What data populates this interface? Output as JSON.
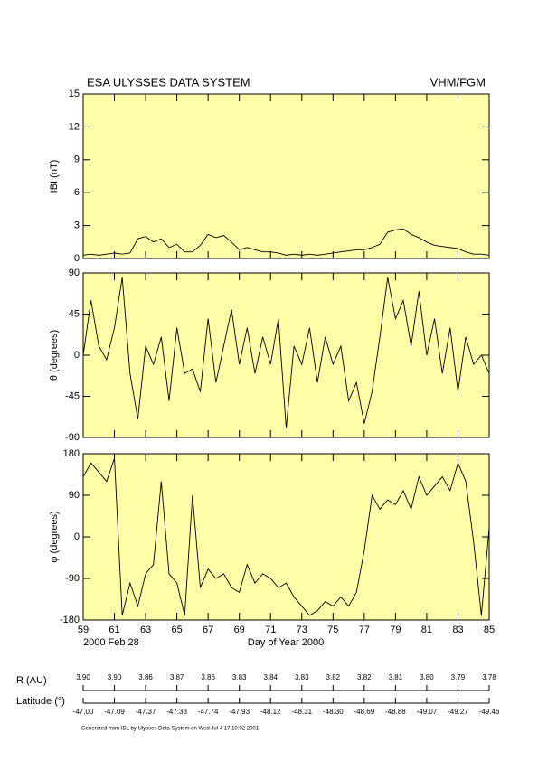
{
  "header": {
    "title": "ESA ULYSSES DATA SYSTEM",
    "instrument": "VHM/FGM"
  },
  "x_label": "Day of Year 2000",
  "start_date": "2000 Feb 28",
  "footer": "Generated from IDL by Ulysses Data System on Wed Jul 4 17:10:02 2001",
  "chart_data": [
    {
      "type": "line",
      "y_label": "IBI (nT)",
      "color": "#000000",
      "xlim": [
        59,
        85
      ],
      "ylim": [
        0,
        15
      ],
      "yticks": [
        0,
        3,
        6,
        9,
        12,
        15
      ],
      "x": [
        59,
        59.5,
        60,
        60.5,
        61,
        61.5,
        62,
        62.5,
        63,
        63.5,
        64,
        64.5,
        65,
        65.5,
        66,
        66.5,
        67,
        67.5,
        68,
        68.5,
        69,
        69.5,
        70,
        70.5,
        71,
        71.5,
        72,
        72.5,
        73,
        73.5,
        74,
        74.5,
        75,
        75.5,
        76,
        76.5,
        77,
        77.5,
        78,
        78.5,
        79,
        79.5,
        80,
        80.5,
        81,
        81.5,
        82,
        82.5,
        83,
        83.5,
        84,
        84.5,
        85
      ],
      "values": [
        0.3,
        0.4,
        0.3,
        0.4,
        0.5,
        0.4,
        0.5,
        1.8,
        2.0,
        1.5,
        1.8,
        1.0,
        1.3,
        0.6,
        0.6,
        1.2,
        2.2,
        1.9,
        2.1,
        1.5,
        0.8,
        1.0,
        0.8,
        0.6,
        0.6,
        0.5,
        0.3,
        0.4,
        0.3,
        0.4,
        0.3,
        0.4,
        0.5,
        0.6,
        0.7,
        0.8,
        0.8,
        1.0,
        1.3,
        2.4,
        2.6,
        2.7,
        2.2,
        1.9,
        1.5,
        1.2,
        1.1,
        1.0,
        0.9,
        0.6,
        0.4,
        0.4,
        0.3
      ]
    },
    {
      "type": "line",
      "y_label": "θ (degrees)",
      "color": "#000000",
      "xlim": [
        59,
        85
      ],
      "ylim": [
        -90,
        90
      ],
      "yticks": [
        -90,
        -45,
        0,
        45,
        90
      ],
      "x": [
        59,
        59.5,
        60,
        60.5,
        61,
        61.5,
        62,
        62.5,
        63,
        63.5,
        64,
        64.5,
        65,
        65.5,
        66,
        66.5,
        67,
        67.5,
        68,
        68.5,
        69,
        69.5,
        70,
        70.5,
        71,
        71.5,
        72,
        72.5,
        73,
        73.5,
        74,
        74.5,
        75,
        75.5,
        76,
        76.5,
        77,
        77.5,
        78,
        78.5,
        79,
        79.5,
        80,
        80.5,
        81,
        81.5,
        82,
        82.5,
        83,
        83.5,
        84,
        84.5,
        85
      ],
      "values": [
        0,
        60,
        10,
        -5,
        30,
        85,
        -20,
        -70,
        10,
        -10,
        20,
        -50,
        30,
        -20,
        -15,
        -40,
        40,
        -30,
        10,
        50,
        -10,
        30,
        -20,
        20,
        -10,
        40,
        -80,
        10,
        -10,
        30,
        -30,
        20,
        -10,
        10,
        -50,
        -30,
        -75,
        -40,
        20,
        85,
        40,
        60,
        10,
        70,
        0,
        40,
        -20,
        30,
        -40,
        20,
        -10,
        0,
        -20
      ]
    },
    {
      "type": "line",
      "y_label": "φ (degrees)",
      "color": "#000000",
      "xlim": [
        59,
        85
      ],
      "ylim": [
        -180,
        180
      ],
      "yticks": [
        -180,
        -90,
        0,
        90,
        180
      ],
      "xticks": [
        59,
        61,
        63,
        65,
        67,
        69,
        71,
        73,
        75,
        77,
        79,
        81,
        83,
        85
      ],
      "x": [
        59,
        59.5,
        60,
        60.5,
        61,
        61.5,
        62,
        62.5,
        63,
        63.5,
        64,
        64.5,
        65,
        65.5,
        66,
        66.5,
        67,
        67.5,
        68,
        68.5,
        69,
        69.5,
        70,
        70.5,
        71,
        71.5,
        72,
        72.5,
        73,
        73.5,
        74,
        74.5,
        75,
        75.5,
        76,
        76.5,
        77,
        77.5,
        78,
        78.5,
        79,
        79.5,
        80,
        80.5,
        81,
        81.5,
        82,
        82.5,
        83,
        83.5,
        84,
        84.5,
        85
      ],
      "values": [
        130,
        160,
        140,
        120,
        170,
        -170,
        -100,
        -150,
        -80,
        -60,
        120,
        -80,
        -100,
        -170,
        90,
        -110,
        -70,
        -90,
        -80,
        -110,
        -120,
        -60,
        -100,
        -80,
        -90,
        -110,
        -100,
        -130,
        -150,
        -170,
        -160,
        -140,
        -150,
        -130,
        -150,
        -120,
        -30,
        90,
        60,
        80,
        70,
        100,
        60,
        130,
        90,
        110,
        130,
        100,
        160,
        120,
        -10,
        -170,
        20
      ]
    }
  ],
  "secondary_axes": [
    {
      "label": "R (AU)",
      "ticks": [
        {
          "value": 59,
          "label": "3.90"
        },
        {
          "value": 61,
          "label": "3.90"
        },
        {
          "value": 63,
          "label": "3.86"
        },
        {
          "value": 65,
          "label": "3.87"
        },
        {
          "value": 67,
          "label": "3.86"
        },
        {
          "value": 69,
          "label": "3.83"
        },
        {
          "value": 71,
          "label": "3.84"
        },
        {
          "value": 73,
          "label": "3.83"
        },
        {
          "value": 75,
          "label": "3.82"
        },
        {
          "value": 77,
          "label": "3.82"
        },
        {
          "value": 79,
          "label": "3.81"
        },
        {
          "value": 81,
          "label": "3.80"
        },
        {
          "value": 83,
          "label": "3.79"
        },
        {
          "value": 85,
          "label": "3.78"
        }
      ]
    },
    {
      "label": "Latitude (°)",
      "ticks": [
        {
          "value": 59,
          "label": "-47.00"
        },
        {
          "value": 61,
          "label": "-47.09"
        },
        {
          "value": 63,
          "label": "-47.37"
        },
        {
          "value": 65,
          "label": "-47.33"
        },
        {
          "value": 67,
          "label": "-47.74"
        },
        {
          "value": 69,
          "label": "-47.93"
        },
        {
          "value": 71,
          "label": "-48.12"
        },
        {
          "value": 73,
          "label": "-48.31"
        },
        {
          "value": 75,
          "label": "-48.30"
        },
        {
          "value": 77,
          "label": "-48.69"
        },
        {
          "value": 79,
          "label": "-48.88"
        },
        {
          "value": 81,
          "label": "-49.07"
        },
        {
          "value": 83,
          "label": "-49.27"
        },
        {
          "value": 85,
          "label": "-49.46"
        }
      ]
    }
  ]
}
